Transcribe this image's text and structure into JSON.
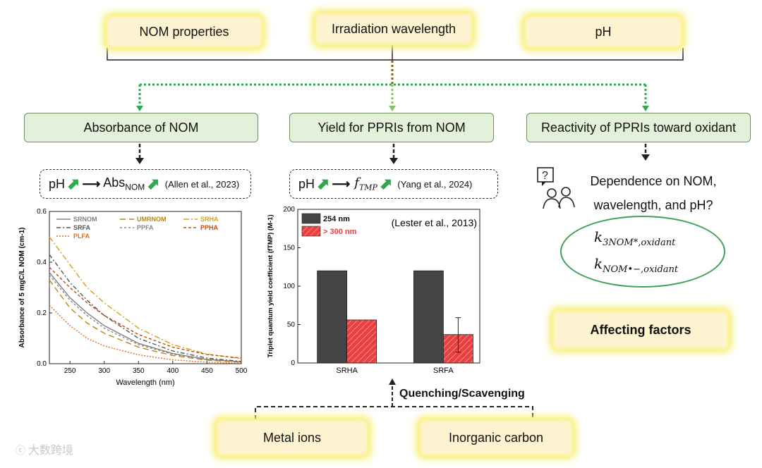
{
  "top_factors": [
    "NOM properties",
    "Irradiation wavelength",
    "pH"
  ],
  "steps": {
    "absorbance": "Absorbance of NOM",
    "yield": "Yield for PPRIs from NOM",
    "reactivity": "Reactivity of PPRIs toward oxidant"
  },
  "relations": {
    "left": {
      "ph": "pH",
      "arrow": "⟶",
      "abs": "Abs",
      "abs_sub": "NOM",
      "ref": "(Allen et al., 2023)"
    },
    "mid": {
      "ph": "pH",
      "arrow": "⟶",
      "f": "f",
      "f_sub": "TMP",
      "ref": "(Yang et al., 2024)"
    }
  },
  "dependence": {
    "line1": "Dependence on NOM,",
    "line2": "wavelength, and pH?"
  },
  "rate_constants": {
    "k1": {
      "k": "k",
      "sub": "3NOM*,oxidant"
    },
    "k2": {
      "k": "k",
      "sub": "NOM•−,oxidant"
    }
  },
  "affecting_factors": "Affecting factors",
  "quenching": "Quenching/Scavenging",
  "bottom_factors": [
    "Metal ions",
    "Inorganic carbon"
  ],
  "watermark": "大数跨境",
  "chart_data": [
    {
      "type": "line",
      "xlabel": "Wavelength (nm)",
      "ylabel": "Absorbance of 5 mgC/L NOM (cm-1)",
      "xlim": [
        220,
        500
      ],
      "ylim": [
        0,
        0.6
      ],
      "xticks": [
        250,
        300,
        350,
        400,
        450,
        500
      ],
      "yticks": [
        0.0,
        0.2,
        0.4,
        0.6
      ],
      "x": [
        220,
        250,
        275,
        300,
        350,
        400,
        450,
        500
      ],
      "series": [
        {
          "name": "SRNOM",
          "color": "#808080",
          "dash": "",
          "values": [
            0.36,
            0.26,
            0.2,
            0.15,
            0.08,
            0.04,
            0.017,
            0.007
          ]
        },
        {
          "name": "UMRNOM",
          "color": "#b8860b",
          "dash": "8,5",
          "values": [
            0.33,
            0.22,
            0.16,
            0.12,
            0.065,
            0.032,
            0.014,
            0.006
          ]
        },
        {
          "name": "SRHA",
          "color": "#d4a017",
          "dash": "8,3,2,3",
          "values": [
            0.5,
            0.39,
            0.3,
            0.24,
            0.14,
            0.075,
            0.038,
            0.02
          ]
        },
        {
          "name": "SRFA",
          "color": "#555555",
          "dash": "6,3,2,3",
          "values": [
            0.43,
            0.32,
            0.25,
            0.19,
            0.1,
            0.05,
            0.022,
            0.009
          ]
        },
        {
          "name": "PPFA",
          "color": "#888888",
          "dash": "3,3",
          "values": [
            0.35,
            0.25,
            0.19,
            0.14,
            0.075,
            0.037,
            0.016,
            0.007
          ]
        },
        {
          "name": "PPHA",
          "color": "#c04a0a",
          "dash": "4,3",
          "values": [
            0.38,
            0.3,
            0.24,
            0.19,
            0.115,
            0.065,
            0.036,
            0.022
          ]
        },
        {
          "name": "PLFA",
          "color": "#e07020",
          "dash": "2,2",
          "values": [
            0.23,
            0.15,
            0.1,
            0.07,
            0.035,
            0.015,
            0.006,
            0.002
          ]
        }
      ]
    },
    {
      "type": "bar",
      "ylabel": "Triplet quantum yield coefficient (fTMP) (M-1)",
      "categories": [
        "SRHA",
        "SRFA"
      ],
      "ylim": [
        0,
        200
      ],
      "yticks": [
        0,
        50,
        100,
        150,
        200
      ],
      "annotation": "(Lester et al., 2013)",
      "series": [
        {
          "name": "254 nm",
          "color": "#444444",
          "values": [
            120,
            120
          ]
        },
        {
          "name": "> 300 nm",
          "color": "#e84040",
          "values": [
            56,
            37
          ]
        }
      ],
      "error": [
        null,
        [
          14,
          59
        ]
      ]
    }
  ]
}
